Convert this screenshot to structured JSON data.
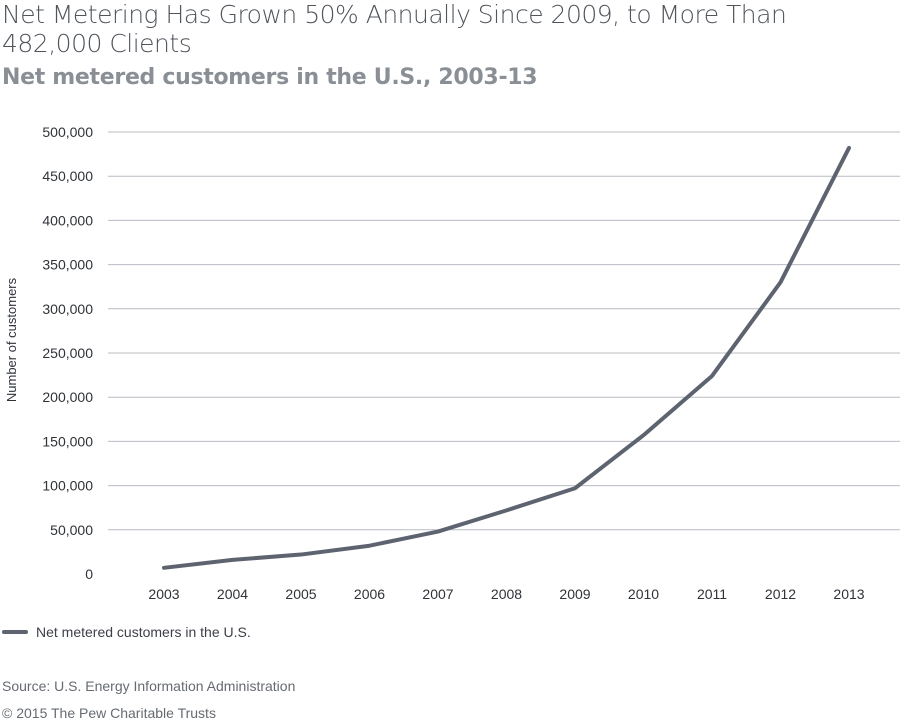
{
  "header": {
    "title": "Net Metering Has Grown 50% Annually Since 2009, to More Than 482,000 Clients",
    "subtitle": "Net metered customers in the U.S., 2003-13"
  },
  "footer": {
    "source": "Source: U.S. Energy Information Administration",
    "copyright": "© 2015 The Pew Charitable Trusts"
  },
  "colors": {
    "line": "#5d6470",
    "grid": "#b8bcc2"
  },
  "chart_data": {
    "type": "line",
    "title": "Net Metering Has Grown 50% Annually Since 2009, to More Than 482,000 Clients",
    "subtitle": "Net metered customers in the U.S., 2003-13",
    "xlabel": "",
    "ylabel": "Number of customers",
    "categories": [
      "2003",
      "2004",
      "2005",
      "2006",
      "2007",
      "2008",
      "2009",
      "2010",
      "2011",
      "2012",
      "2013"
    ],
    "y_ticks": [
      "0",
      "50,000",
      "100,000",
      "150,000",
      "200,000",
      "250,000",
      "300,000",
      "350,000",
      "400,000",
      "450,000",
      "500,000"
    ],
    "ylim": [
      0,
      500000
    ],
    "grid": true,
    "legend_position": "bottom-left",
    "series": [
      {
        "name": "Net metered customers in the U.S.",
        "values": [
          7000,
          16000,
          22000,
          32000,
          48000,
          72000,
          97000,
          157000,
          224000,
          330000,
          482000
        ]
      }
    ]
  }
}
